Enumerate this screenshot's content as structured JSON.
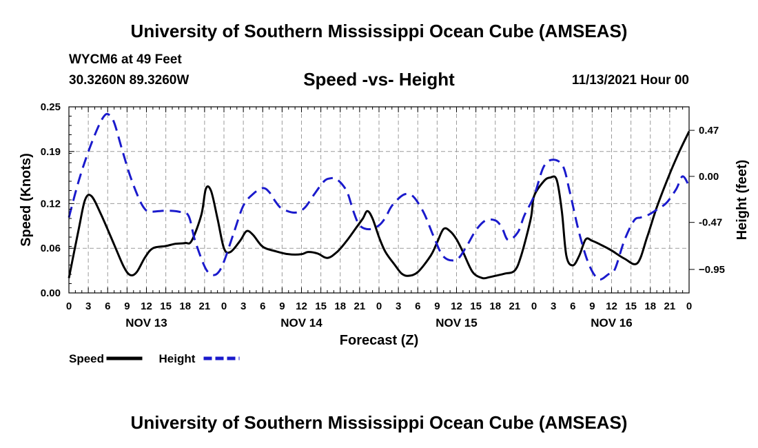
{
  "header": {
    "title": "University of Southern Mississippi Ocean Cube (AMSEAS)",
    "station": "WYCM6 at 49 Feet",
    "coordinates": "30.3260N  89.3260W",
    "forecast_date": "11/13/2021 Hour 00"
  },
  "footer": {
    "title": "University of Southern Mississippi Ocean Cube (AMSEAS)"
  },
  "chart_data": {
    "type": "line",
    "title": "Speed -vs- Height",
    "xlabel": "Forecast (Z)",
    "ylabel": "Speed (Knots)",
    "y2label": "Height (feet)",
    "xlim": [
      0,
      96
    ],
    "ylim": [
      0,
      0.25
    ],
    "y2lim": [
      -1.19,
      0.71
    ],
    "x_ticks": [
      0,
      3,
      6,
      9,
      12,
      15,
      18,
      21,
      24,
      27,
      30,
      33,
      36,
      39,
      42,
      45,
      48,
      51,
      54,
      57,
      60,
      63,
      66,
      69,
      72,
      75,
      78,
      81,
      84,
      87,
      90,
      93,
      96
    ],
    "x_tick_labels": [
      "0",
      "3",
      "6",
      "9",
      "12",
      "15",
      "18",
      "21",
      "0",
      "3",
      "6",
      "9",
      "12",
      "15",
      "18",
      "21",
      "0",
      "3",
      "6",
      "9",
      "12",
      "15",
      "18",
      "21",
      "0",
      "3",
      "6",
      "9",
      "12",
      "15",
      "18",
      "21",
      "0"
    ],
    "day_labels": [
      {
        "x": 12,
        "label": "NOV 13"
      },
      {
        "x": 36,
        "label": "NOV 14"
      },
      {
        "x": 60,
        "label": "NOV 15"
      },
      {
        "x": 84,
        "label": "NOV 16"
      }
    ],
    "y_ticks": [
      0.0,
      0.06,
      0.12,
      0.19,
      0.25
    ],
    "y_tick_labels": [
      "0.00",
      "0.06",
      "0.12",
      "0.19",
      "0.25"
    ],
    "y2_ticks": [
      0.47,
      0.0,
      -0.47,
      -0.95
    ],
    "y2_tick_labels": [
      "0.47",
      "0.00",
      "-0.47",
      "−0.95"
    ],
    "grid": true,
    "legend": [
      {
        "name": "Speed",
        "color": "#000000",
        "dash": "solid"
      },
      {
        "name": "Height",
        "color": "#1a1acc",
        "dash": "dashed"
      }
    ],
    "series": [
      {
        "name": "Speed",
        "axis": "left",
        "color": "#000000",
        "x": [
          0,
          1.5,
          2.5,
          3.5,
          5,
          7,
          8.5,
          9.5,
          10.5,
          11.8,
          13,
          15,
          16.5,
          18,
          19,
          20.5,
          21.2,
          22,
          23,
          24,
          25,
          26.5,
          27.5,
          28.5,
          30,
          32,
          34,
          36,
          37,
          38.5,
          40,
          41.5,
          43,
          44.5,
          45.5,
          46.2,
          47,
          48,
          49,
          50.5,
          51.5,
          52.5,
          54,
          56,
          57,
          58,
          59,
          60,
          61,
          62.5,
          64,
          65,
          66,
          67.5,
          69,
          70,
          71.5,
          72,
          73.5,
          74.5,
          75.5,
          76.3,
          77,
          78,
          79,
          80,
          81,
          82.5,
          84,
          86,
          88,
          89.5,
          91,
          93,
          94.5,
          96
        ],
        "values": [
          0.02,
          0.085,
          0.125,
          0.13,
          0.105,
          0.065,
          0.035,
          0.024,
          0.028,
          0.048,
          0.06,
          0.063,
          0.066,
          0.067,
          0.07,
          0.105,
          0.14,
          0.137,
          0.1,
          0.06,
          0.055,
          0.07,
          0.083,
          0.078,
          0.062,
          0.056,
          0.052,
          0.052,
          0.055,
          0.053,
          0.047,
          0.055,
          0.07,
          0.088,
          0.1,
          0.11,
          0.1,
          0.075,
          0.055,
          0.037,
          0.026,
          0.023,
          0.028,
          0.05,
          0.068,
          0.086,
          0.083,
          0.072,
          0.055,
          0.028,
          0.02,
          0.021,
          0.023,
          0.026,
          0.03,
          0.05,
          0.1,
          0.13,
          0.15,
          0.155,
          0.152,
          0.11,
          0.05,
          0.037,
          0.05,
          0.072,
          0.07,
          0.064,
          0.057,
          0.046,
          0.04,
          0.075,
          0.115,
          0.16,
          0.19,
          0.217
        ]
      },
      {
        "name": "Height",
        "axis": "right",
        "color": "#1a1acc",
        "x": [
          0,
          1.5,
          3,
          4.5,
          5.5,
          6.2,
          7,
          8.2,
          9.5,
          11,
          12,
          13,
          15,
          17,
          18.5,
          19.5,
          21,
          22,
          23,
          24,
          25.5,
          27,
          28.5,
          30,
          31,
          32,
          33,
          35,
          36.5,
          38,
          39.5,
          40.5,
          41.5,
          43,
          44,
          45,
          46.5,
          48,
          49,
          50,
          51.5,
          52.5,
          53.5,
          55,
          56.5,
          58,
          60,
          61.5,
          63,
          64.5,
          66,
          67,
          68,
          69.5,
          70.5,
          72,
          73.5,
          75,
          76.5,
          77.5,
          79,
          80.5,
          82,
          83.5,
          84.5,
          86,
          87.5,
          88.5,
          89.5,
          91,
          92.5,
          94,
          95,
          96
        ],
        "values": [
          -0.42,
          -0.05,
          0.25,
          0.5,
          0.62,
          0.63,
          0.55,
          0.28,
          0.0,
          -0.25,
          -0.35,
          -0.36,
          -0.35,
          -0.36,
          -0.4,
          -0.65,
          -0.92,
          -1.0,
          -0.99,
          -0.87,
          -0.58,
          -0.3,
          -0.18,
          -0.12,
          -0.16,
          -0.26,
          -0.33,
          -0.37,
          -0.32,
          -0.18,
          -0.05,
          -0.02,
          -0.03,
          -0.15,
          -0.35,
          -0.5,
          -0.54,
          -0.5,
          -0.42,
          -0.3,
          -0.2,
          -0.18,
          -0.22,
          -0.38,
          -0.62,
          -0.82,
          -0.85,
          -0.72,
          -0.55,
          -0.45,
          -0.45,
          -0.52,
          -0.65,
          -0.57,
          -0.4,
          -0.2,
          0.1,
          0.17,
          0.1,
          -0.15,
          -0.58,
          -0.9,
          -1.05,
          -1.0,
          -0.95,
          -0.65,
          -0.45,
          -0.42,
          -0.4,
          -0.34,
          -0.27,
          -0.13,
          0.0,
          -0.1
        ]
      }
    ]
  }
}
